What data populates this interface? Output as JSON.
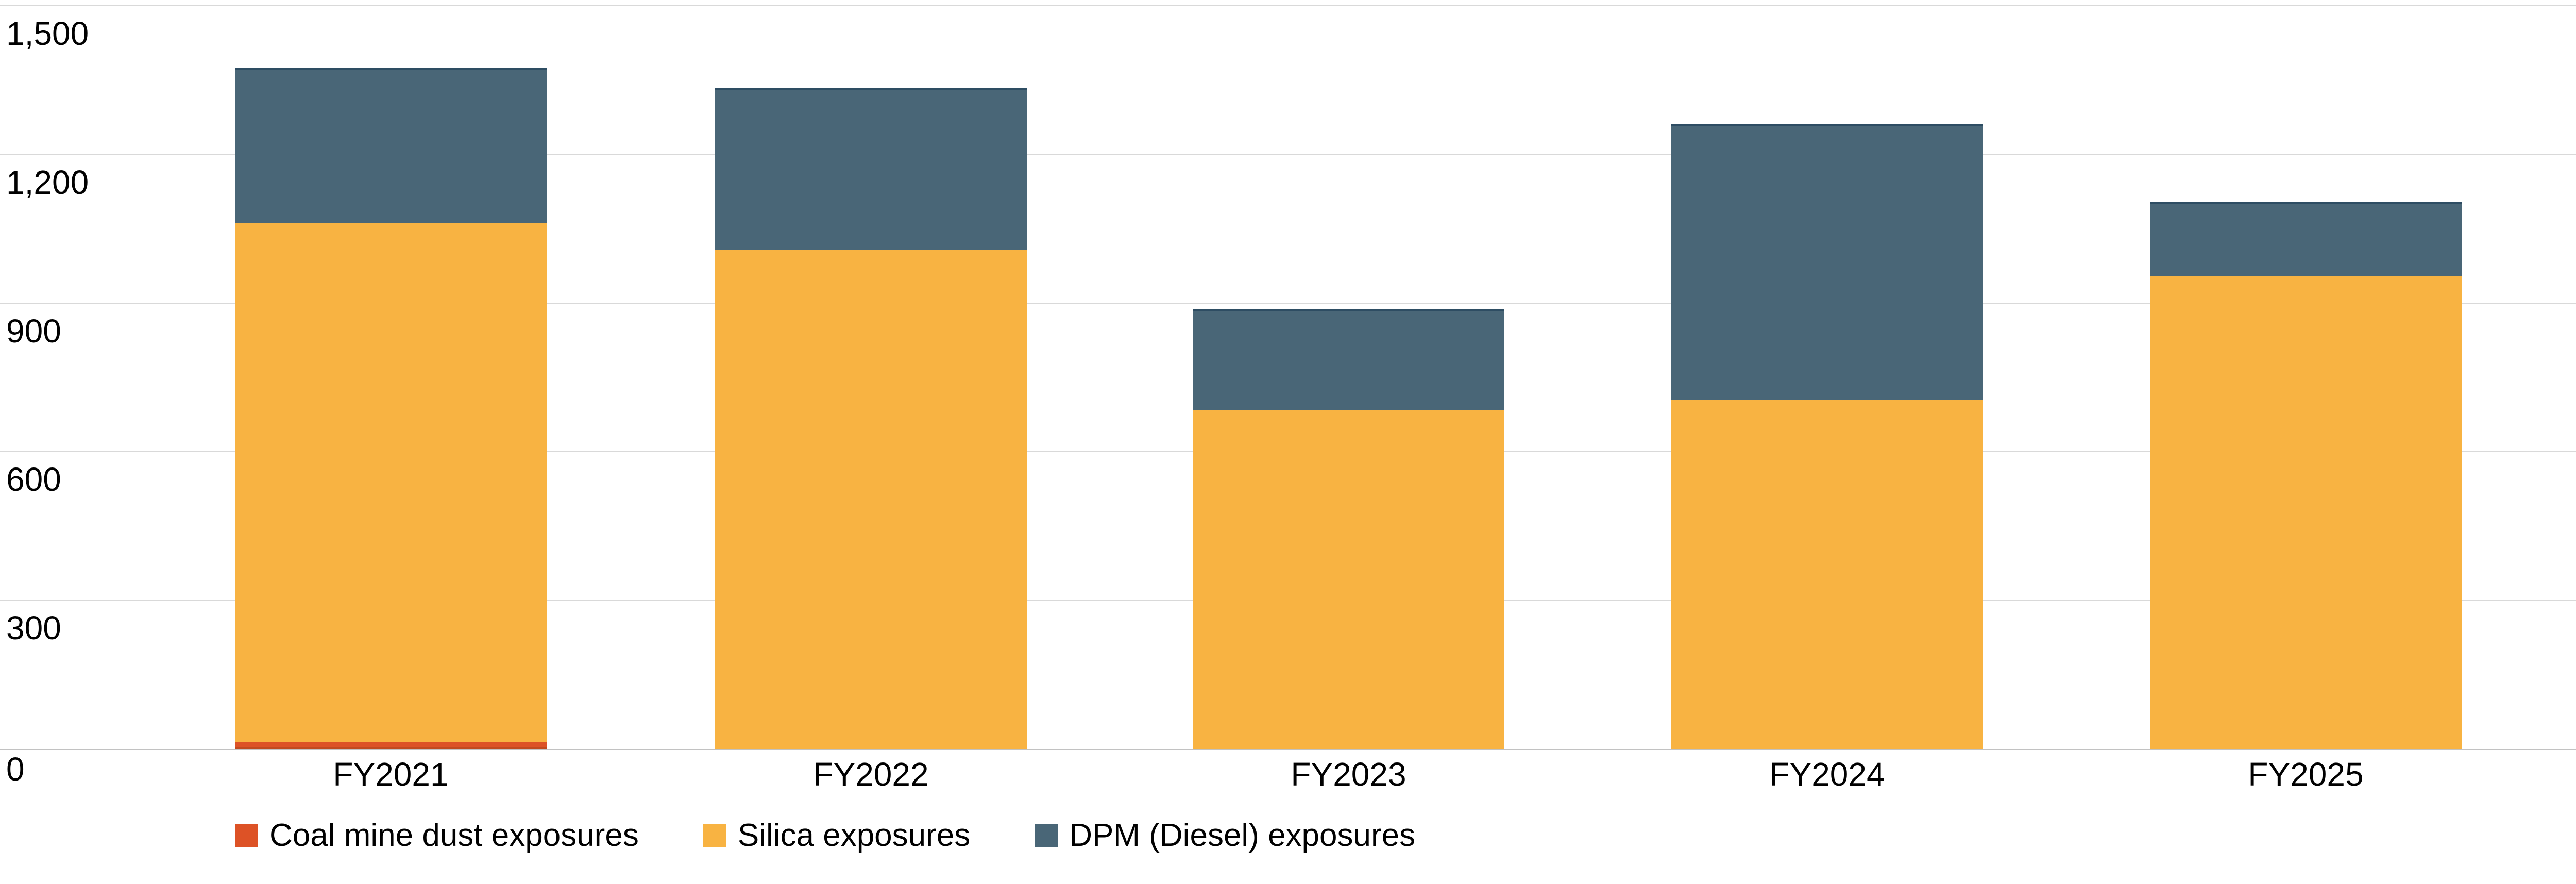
{
  "chart_data": {
    "type": "bar",
    "stacked": true,
    "title": "",
    "xlabel": "",
    "ylabel": "",
    "categories": [
      "FY2021",
      "FY2022",
      "FY2023",
      "FY2024",
      "FY2025"
    ],
    "series": [
      {
        "name": "Coal mine dust exposures",
        "color": "#DD5226",
        "values": [
          14,
          0,
          0,
          0,
          0
        ]
      },
      {
        "name": "Silica exposures",
        "color": "#F8B342",
        "values": [
          1047,
          1007,
          682,
          703,
          953
        ]
      },
      {
        "name": "DPM (Diesel) exposures",
        "color": "#496677",
        "values": [
          312,
          326,
          204,
          557,
          149
        ]
      }
    ],
    "totals": [
      1373,
      1333,
      886,
      1260,
      1102
    ],
    "ylim": [
      0,
      1500
    ],
    "ytick_labels": [
      "0",
      "300",
      "600",
      "900",
      "1,200",
      "1,500"
    ],
    "grid": true,
    "legend_position": "bottom"
  },
  "colors": {
    "background": "#ffffff",
    "gridline": "#d9d9d9",
    "zero_line": "#c2c2c2",
    "text": "#000000"
  }
}
